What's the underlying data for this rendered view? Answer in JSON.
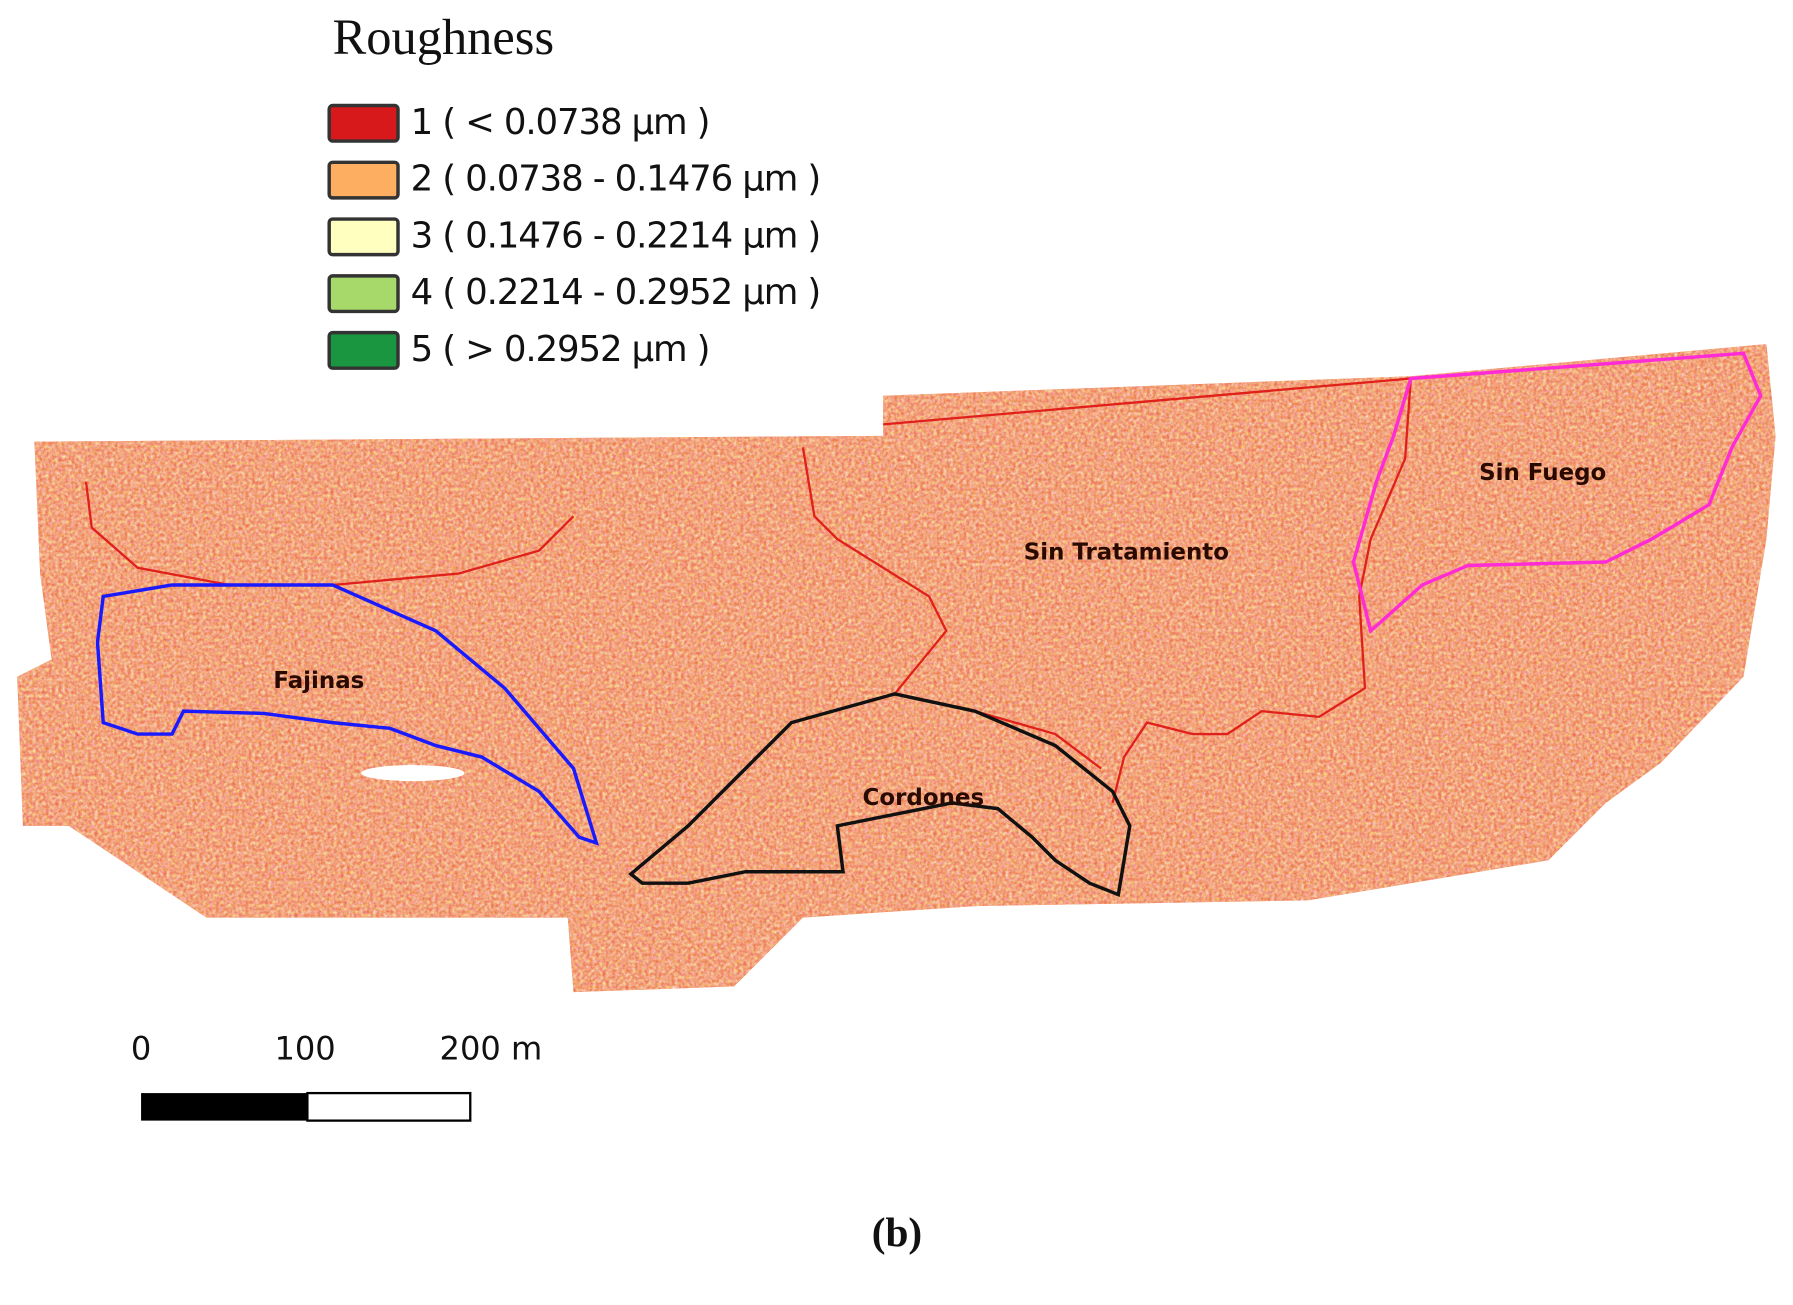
{
  "legend": {
    "title": "Roughness",
    "items": [
      {
        "label": "1 ( < 0.0738 µm )",
        "color": "#d7191c"
      },
      {
        "label": "2 ( 0.0738 - 0.1476 µm )",
        "color": "#fdae61"
      },
      {
        "label": "3 ( 0.1476 - 0.2214 µm )",
        "color": "#ffffc0"
      },
      {
        "label": "4 ( 0.2214 - 0.2952 µm )",
        "color": "#a6d96a"
      },
      {
        "label": "5 ( > 0.2952 µm )",
        "color": "#1a9641"
      }
    ]
  },
  "regions": [
    {
      "label": "Fajinas"
    },
    {
      "label": "Cordones"
    },
    {
      "label": "Sin Tratamiento"
    },
    {
      "label": "Sin Fuego"
    }
  ],
  "scale_bar": {
    "labels": [
      "0",
      "100",
      "200 m"
    ]
  },
  "caption": "(b)"
}
